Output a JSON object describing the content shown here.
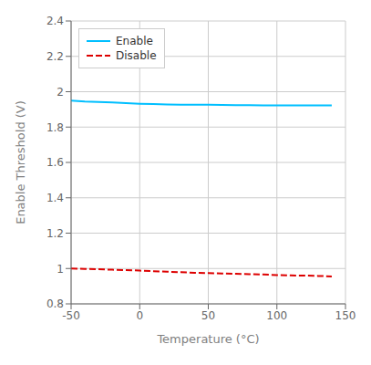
{
  "chart_data": {
    "type": "line",
    "xlabel": "Temperature (°C)",
    "ylabel": "Enable Threshold (V)",
    "x": [
      -50,
      -40,
      -30,
      -20,
      -10,
      0,
      10,
      20,
      30,
      40,
      50,
      60,
      70,
      80,
      90,
      100,
      110,
      120,
      130,
      140
    ],
    "series": [
      {
        "name": "Enable",
        "color": "#00BFFF",
        "line_style": "solid",
        "values": [
          1.95,
          1.945,
          1.942,
          1.939,
          1.935,
          1.932,
          1.93,
          1.928,
          1.927,
          1.926,
          1.926,
          1.925,
          1.924,
          1.924,
          1.923,
          1.922,
          1.922,
          1.922,
          1.922,
          1.923
        ]
      },
      {
        "name": "Disable",
        "color": "#DD0000",
        "line_style": "dashed",
        "values": [
          1.0,
          0.998,
          0.996,
          0.993,
          0.991,
          0.988,
          0.985,
          0.982,
          0.979,
          0.976,
          0.974,
          0.972,
          0.97,
          0.968,
          0.966,
          0.963,
          0.961,
          0.96,
          0.958,
          0.955
        ]
      }
    ],
    "xlim": [
      -50,
      150
    ],
    "ylim": [
      0.8,
      2.4
    ],
    "xticks": [
      -50,
      0,
      50,
      100,
      150
    ],
    "yticks": [
      0.8,
      1.0,
      1.2,
      1.4,
      1.6,
      1.8,
      2.0,
      2.2,
      2.4
    ],
    "grid": true,
    "legend": "upper left"
  }
}
